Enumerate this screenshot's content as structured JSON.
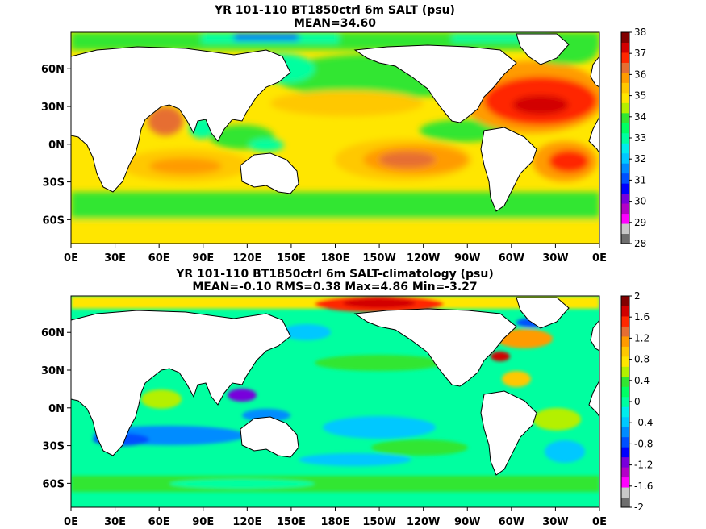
{
  "chart_data": [
    {
      "type": "heatmap",
      "title": "YR 101-110 BT1850ctrl 6m SALT (psu)",
      "subtitle": "MEAN=34.60",
      "x_ticks": [
        "0E",
        "30E",
        "60E",
        "90E",
        "120E",
        "150E",
        "180E",
        "150W",
        "120W",
        "90W",
        "60W",
        "30W",
        "0E"
      ],
      "y_ticks": [
        "60N",
        "30N",
        "0N",
        "30S",
        "60S"
      ],
      "xlim": [
        0,
        360
      ],
      "ylim": [
        -79,
        89
      ],
      "colorbar": {
        "ticks": [
          "38",
          "37",
          "36",
          "35",
          "34",
          "33",
          "32",
          "31",
          "30",
          "29",
          "28"
        ],
        "levels": [
          28,
          28.5,
          29,
          29.5,
          30,
          30.5,
          31,
          31.5,
          32,
          32.5,
          33,
          33.5,
          34,
          34.5,
          35,
          35.5,
          36,
          36.5,
          37,
          37.5,
          38
        ],
        "colors": [
          "#6e6e6e",
          "#c8c8c8",
          "#ff00ff",
          "#b400c8",
          "#7800dc",
          "#0000ff",
          "#0050ff",
          "#008cff",
          "#00c8ff",
          "#00ecec",
          "#00ffa0",
          "#00ff64",
          "#32e632",
          "#b4f000",
          "#ffe600",
          "#ffc800",
          "#ff9b00",
          "#e66e32",
          "#ff2800",
          "#d20000",
          "#820000"
        ]
      },
      "grid": false
    },
    {
      "type": "heatmap",
      "title": "YR 101-110 BT1850ctrl 6m SALT-climatology (psu)",
      "subtitle": "MEAN=-0.10   RMS=0.38   Max=4.86   Min=-3.27",
      "x_ticks": [
        "0E",
        "30E",
        "60E",
        "90E",
        "120E",
        "150E",
        "180E",
        "150W",
        "120W",
        "90W",
        "60W",
        "30W",
        "0E"
      ],
      "y_ticks": [
        "60N",
        "30N",
        "0N",
        "30S",
        "60S"
      ],
      "xlim": [
        0,
        360
      ],
      "ylim": [
        -79,
        89
      ],
      "colorbar": {
        "ticks": [
          "2",
          "1.6",
          "1.2",
          "0.8",
          "0.4",
          "0",
          "-0.4",
          "-0.8",
          "-1.2",
          "-1.6",
          "-2"
        ],
        "levels": [
          -2,
          -1.8,
          -1.6,
          -1.4,
          -1.2,
          -1.0,
          -0.8,
          -0.6,
          -0.4,
          -0.2,
          0,
          0.2,
          0.4,
          0.6,
          0.8,
          1.0,
          1.2,
          1.4,
          1.6,
          1.8,
          2
        ],
        "colors": [
          "#6e6e6e",
          "#c8c8c8",
          "#ff00ff",
          "#b400c8",
          "#7800dc",
          "#0000ff",
          "#0050ff",
          "#008cff",
          "#00c8ff",
          "#00ecec",
          "#00ffa0",
          "#00ff64",
          "#32e632",
          "#b4f000",
          "#ffe600",
          "#ffc800",
          "#ff9b00",
          "#e66e32",
          "#ff2800",
          "#d20000",
          "#820000"
        ]
      },
      "grid": false
    }
  ]
}
